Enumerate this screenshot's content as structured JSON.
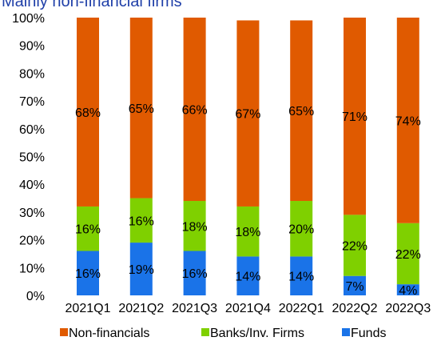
{
  "title": "Mainly non-financial firms",
  "chart_data": {
    "type": "bar",
    "stacked": true,
    "categories": [
      "2021Q1",
      "2021Q2",
      "2021Q3",
      "2021Q4",
      "2022Q1",
      "2022Q2",
      "2022Q3"
    ],
    "series": [
      {
        "name": "Funds",
        "color": "#1a73e8",
        "values": [
          16,
          19,
          16,
          14,
          14,
          7,
          4
        ],
        "labels": [
          "16%",
          "19%",
          "16%",
          "14%",
          "14%",
          "7%",
          "4%"
        ]
      },
      {
        "name": "Banks/Inv. Firms",
        "color": "#7fd000",
        "values": [
          16,
          16,
          18,
          18,
          20,
          22,
          22
        ],
        "labels": [
          "16%",
          "16%",
          "18%",
          "18%",
          "20%",
          "22%",
          "22%"
        ]
      },
      {
        "name": "Non-financials",
        "color": "#e05a00",
        "values": [
          68,
          65,
          66,
          67,
          65,
          71,
          74
        ],
        "labels": [
          "68%",
          "65%",
          "66%",
          "67%",
          "65%",
          "71%",
          "74%"
        ]
      }
    ],
    "yticks": [
      "0%",
      "10%",
      "20%",
      "30%",
      "40%",
      "50%",
      "60%",
      "70%",
      "80%",
      "90%",
      "100%"
    ],
    "ylim": [
      0,
      100
    ],
    "grid": false,
    "legend_position": "bottom",
    "legend_order": [
      "Non-financials",
      "Banks/Inv. Firms",
      "Funds"
    ]
  }
}
